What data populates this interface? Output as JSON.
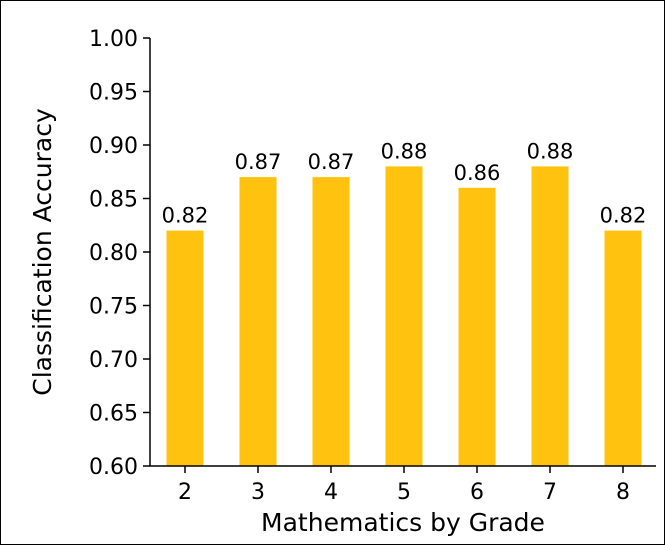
{
  "chart_data": {
    "type": "bar",
    "title": "",
    "xlabel": "Mathematics by Grade",
    "ylabel": "Classification Accuracy",
    "categories": [
      "2",
      "3",
      "4",
      "5",
      "6",
      "7",
      "8"
    ],
    "values": [
      0.82,
      0.87,
      0.87,
      0.88,
      0.86,
      0.88,
      0.82
    ],
    "value_labels": [
      "0.82",
      "0.87",
      "0.87",
      "0.88",
      "0.86",
      "0.88",
      "0.82"
    ],
    "ylim": [
      0.6,
      1.0
    ],
    "yticks": [
      0.6,
      0.65,
      0.7,
      0.75,
      0.8,
      0.85,
      0.9,
      0.95,
      1.0
    ],
    "ytick_labels": [
      "0.60",
      "0.65",
      "0.70",
      "0.75",
      "0.80",
      "0.85",
      "0.90",
      "0.95",
      "1.00"
    ],
    "grid": false,
    "bar_color": "#FFC20E"
  }
}
